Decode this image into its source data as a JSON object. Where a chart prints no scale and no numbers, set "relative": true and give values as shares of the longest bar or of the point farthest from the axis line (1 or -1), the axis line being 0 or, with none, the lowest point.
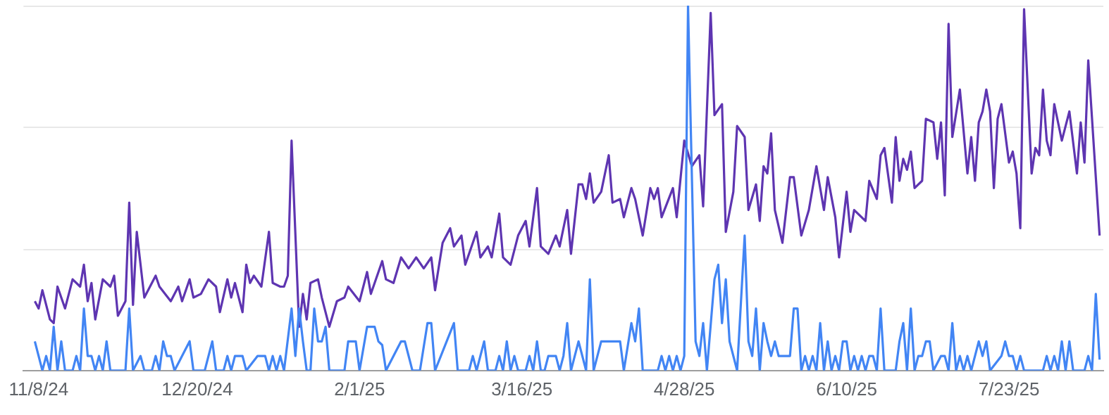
{
  "chart_data": {
    "type": "line",
    "relative": true,
    "legend": false,
    "ref_lines": [
      {
        "axis": "y",
        "value": 0.333,
        "color": "#e8e8e8"
      },
      {
        "axis": "y",
        "value": 0.667,
        "color": "#e8e8e8"
      },
      {
        "axis": "y",
        "value": 1,
        "color": "#e8e8e8"
      }
    ],
    "xlim": [
      "2024-11-04",
      "2025-08-17"
    ],
    "xticks": [
      {
        "value": "2024-11-08",
        "label": "11/8/24"
      },
      {
        "value": "2024-12-20",
        "label": "12/20/24"
      },
      {
        "value": "2025-02-01",
        "label": "2/1/25"
      },
      {
        "value": "2025-03-16",
        "label": "3/16/25"
      },
      {
        "value": "2025-04-28",
        "label": "4/28/25"
      },
      {
        "value": "2025-06-10",
        "label": "6/10/25"
      },
      {
        "value": "2025-07-23",
        "label": "7/23/25"
      }
    ],
    "series": [
      {
        "color": "#5e35b1",
        "x": [
          "2024-11-07",
          "2024-11-08",
          "2024-11-09",
          "2024-11-11",
          "2024-11-12",
          "2024-11-13",
          "2024-11-15",
          "2024-11-17",
          "2024-11-19",
          "2024-11-20",
          "2024-11-21",
          "2024-11-22",
          "2024-11-23",
          "2024-11-25",
          "2024-11-27",
          "2024-11-28",
          "2024-11-29",
          "2024-12-01",
          "2024-12-02",
          "2024-12-03",
          "2024-12-04",
          "2024-12-06",
          "2024-12-09",
          "2024-12-10",
          "2024-12-13",
          "2024-12-15",
          "2024-12-16",
          "2024-12-18",
          "2024-12-19",
          "2024-12-21",
          "2024-12-23",
          "2024-12-25",
          "2024-12-26",
          "2024-12-28",
          "2024-12-29",
          "2024-12-30",
          "2025-01-01",
          "2025-01-02",
          "2025-01-03",
          "2025-01-04",
          "2025-01-06",
          "2025-01-08",
          "2025-01-09",
          "2025-01-11",
          "2025-01-12",
          "2025-01-13",
          "2025-01-14",
          "2025-01-16",
          "2025-01-17",
          "2025-01-18",
          "2025-01-19",
          "2025-01-21",
          "2025-01-22",
          "2025-01-24",
          "2025-01-26",
          "2025-01-28",
          "2025-01-29",
          "2025-02-01",
          "2025-02-03",
          "2025-02-04",
          "2025-02-07",
          "2025-02-08",
          "2025-02-10",
          "2025-02-12",
          "2025-02-14",
          "2025-02-16",
          "2025-02-18",
          "2025-02-20",
          "2025-02-21",
          "2025-02-23",
          "2025-02-25",
          "2025-02-26",
          "2025-02-28",
          "2025-03-01",
          "2025-03-04",
          "2025-03-05",
          "2025-03-07",
          "2025-03-08",
          "2025-03-10",
          "2025-03-11",
          "2025-03-13",
          "2025-03-15",
          "2025-03-17",
          "2025-03-18",
          "2025-03-20",
          "2025-03-21",
          "2025-03-23",
          "2025-03-25",
          "2025-03-26",
          "2025-03-28",
          "2025-03-29",
          "2025-03-31",
          "2025-04-01",
          "2025-04-02",
          "2025-04-03",
          "2025-04-04",
          "2025-04-06",
          "2025-04-08",
          "2025-04-09",
          "2025-04-11",
          "2025-04-12",
          "2025-04-14",
          "2025-04-15",
          "2025-04-17",
          "2025-04-19",
          "2025-04-20",
          "2025-04-21",
          "2025-04-22",
          "2025-04-25",
          "2025-04-26",
          "2025-04-28",
          "2025-04-30",
          "2025-05-02",
          "2025-05-03",
          "2025-05-05",
          "2025-05-06",
          "2025-05-08",
          "2025-05-09",
          "2025-05-11",
          "2025-05-12",
          "2025-05-14",
          "2025-05-15",
          "2025-05-17",
          "2025-05-18",
          "2025-05-19",
          "2025-05-20",
          "2025-05-21",
          "2025-05-22",
          "2025-05-24",
          "2025-05-26",
          "2025-05-27",
          "2025-05-29",
          "2025-05-31",
          "2025-06-02",
          "2025-06-04",
          "2025-06-05",
          "2025-06-07",
          "2025-06-08",
          "2025-06-10",
          "2025-06-11",
          "2025-06-12",
          "2025-06-15",
          "2025-06-16",
          "2025-06-18",
          "2025-06-19",
          "2025-06-20",
          "2025-06-22",
          "2025-06-23",
          "2025-06-24",
          "2025-06-25",
          "2025-06-26",
          "2025-06-27",
          "2025-06-28",
          "2025-06-30",
          "2025-07-01",
          "2025-07-03",
          "2025-07-04",
          "2025-07-05",
          "2025-07-06",
          "2025-07-07",
          "2025-07-08",
          "2025-07-10",
          "2025-07-12",
          "2025-07-13",
          "2025-07-14",
          "2025-07-15",
          "2025-07-16",
          "2025-07-17",
          "2025-07-18",
          "2025-07-19",
          "2025-07-20",
          "2025-07-21",
          "2025-07-23",
          "2025-07-24",
          "2025-07-25",
          "2025-07-26",
          "2025-07-27",
          "2025-07-29",
          "2025-07-30",
          "2025-07-31",
          "2025-08-01",
          "2025-08-02",
          "2025-08-03",
          "2025-08-04",
          "2025-08-06",
          "2025-08-08",
          "2025-08-10",
          "2025-08-11",
          "2025-08-12",
          "2025-08-13",
          "2025-08-16"
        ],
        "values": [
          0.19,
          0.17,
          0.22,
          0.14,
          0.13,
          0.23,
          0.17,
          0.25,
          0.23,
          0.29,
          0.19,
          0.24,
          0.14,
          0.25,
          0.23,
          0.26,
          0.15,
          0.19,
          0.46,
          0.18,
          0.38,
          0.2,
          0.26,
          0.23,
          0.19,
          0.23,
          0.19,
          0.25,
          0.2,
          0.21,
          0.25,
          0.23,
          0.16,
          0.25,
          0.2,
          0.24,
          0.16,
          0.29,
          0.24,
          0.26,
          0.23,
          0.38,
          0.24,
          0.23,
          0.23,
          0.26,
          0.63,
          0.12,
          0.21,
          0.14,
          0.24,
          0.25,
          0.2,
          0.12,
          0.19,
          0.2,
          0.23,
          0.19,
          0.27,
          0.21,
          0.3,
          0.25,
          0.24,
          0.31,
          0.28,
          0.31,
          0.28,
          0.31,
          0.22,
          0.35,
          0.39,
          0.34,
          0.37,
          0.29,
          0.38,
          0.31,
          0.34,
          0.31,
          0.43,
          0.31,
          0.29,
          0.37,
          0.41,
          0.34,
          0.5,
          0.34,
          0.32,
          0.37,
          0.34,
          0.44,
          0.32,
          0.51,
          0.51,
          0.47,
          0.54,
          0.46,
          0.49,
          0.59,
          0.46,
          0.47,
          0.42,
          0.5,
          0.47,
          0.37,
          0.5,
          0.47,
          0.5,
          0.42,
          0.5,
          0.42,
          0.63,
          0.56,
          0.59,
          0.45,
          0.98,
          0.7,
          0.73,
          0.38,
          0.49,
          0.67,
          0.64,
          0.44,
          0.51,
          0.41,
          0.56,
          0.54,
          0.65,
          0.44,
          0.35,
          0.53,
          0.53,
          0.37,
          0.44,
          0.56,
          0.44,
          0.53,
          0.42,
          0.31,
          0.49,
          0.38,
          0.44,
          0.41,
          0.52,
          0.47,
          0.59,
          0.61,
          0.46,
          0.64,
          0.52,
          0.58,
          0.55,
          0.6,
          0.5,
          0.52,
          0.69,
          0.68,
          0.58,
          0.68,
          0.48,
          0.95,
          0.64,
          0.77,
          0.54,
          0.64,
          0.52,
          0.68,
          0.71,
          0.77,
          0.71,
          0.5,
          0.69,
          0.73,
          0.57,
          0.6,
          0.54,
          0.39,
          0.99,
          0.54,
          0.61,
          0.59,
          0.77,
          0.63,
          0.59,
          0.73,
          0.63,
          0.71,
          0.54,
          0.68,
          0.57,
          0.85,
          0.37
        ]
      },
      {
        "color": "#4285f4",
        "x": [
          "2024-11-07",
          "2024-11-09",
          "2024-11-10",
          "2024-11-11",
          "2024-11-12",
          "2024-11-13",
          "2024-11-14",
          "2024-11-15",
          "2024-11-17",
          "2024-11-18",
          "2024-11-19",
          "2024-11-20",
          "2024-11-21",
          "2024-11-22",
          "2024-11-23",
          "2024-11-24",
          "2024-11-25",
          "2024-11-26",
          "2024-11-27",
          "2024-12-01",
          "2024-12-02",
          "2024-12-03",
          "2024-12-05",
          "2024-12-06",
          "2024-12-08",
          "2024-12-09",
          "2024-12-10",
          "2024-12-11",
          "2024-12-12",
          "2024-12-13",
          "2024-12-14",
          "2024-12-16",
          "2024-12-18",
          "2024-12-19",
          "2024-12-22",
          "2024-12-24",
          "2024-12-25",
          "2024-12-27",
          "2024-12-28",
          "2024-12-29",
          "2024-12-30",
          "2025-01-01",
          "2025-01-02",
          "2025-01-05",
          "2025-01-07",
          "2025-01-08",
          "2025-01-09",
          "2025-01-10",
          "2025-01-11",
          "2025-01-12",
          "2025-01-14",
          "2025-01-15",
          "2025-01-16",
          "2025-01-17",
          "2025-01-18",
          "2025-01-19",
          "2025-01-20",
          "2025-01-21",
          "2025-01-22",
          "2025-01-23",
          "2025-01-24",
          "2025-01-28",
          "2025-01-29",
          "2025-01-31",
          "2025-02-01",
          "2025-02-03",
          "2025-02-05",
          "2025-02-06",
          "2025-02-07",
          "2025-02-08",
          "2025-02-10",
          "2025-02-12",
          "2025-02-13",
          "2025-02-15",
          "2025-02-17",
          "2025-02-19",
          "2025-02-20",
          "2025-02-21",
          "2025-02-26",
          "2025-02-27",
          "2025-03-02",
          "2025-03-03",
          "2025-03-04",
          "2025-03-06",
          "2025-03-07",
          "2025-03-09",
          "2025-03-10",
          "2025-03-11",
          "2025-03-12",
          "2025-03-13",
          "2025-03-14",
          "2025-03-15",
          "2025-03-17",
          "2025-03-18",
          "2025-03-19",
          "2025-03-20",
          "2025-03-21",
          "2025-03-22",
          "2025-03-23",
          "2025-03-25",
          "2025-03-26",
          "2025-03-27",
          "2025-03-28",
          "2025-03-29",
          "2025-03-31",
          "2025-04-02",
          "2025-04-03",
          "2025-04-04",
          "2025-04-06",
          "2025-04-11",
          "2025-04-12",
          "2025-04-14",
          "2025-04-15",
          "2025-04-16",
          "2025-04-17",
          "2025-04-21",
          "2025-04-22",
          "2025-04-23",
          "2025-04-24",
          "2025-04-25",
          "2025-04-26",
          "2025-04-27",
          "2025-04-28",
          "2025-04-29",
          "2025-05-01",
          "2025-05-02",
          "2025-05-03",
          "2025-05-04",
          "2025-05-06",
          "2025-05-07",
          "2025-05-08",
          "2025-05-09",
          "2025-05-10",
          "2025-05-12",
          "2025-05-14",
          "2025-05-15",
          "2025-05-16",
          "2025-05-17",
          "2025-05-18",
          "2025-05-19",
          "2025-05-20",
          "2025-05-21",
          "2025-05-22",
          "2025-05-23",
          "2025-05-26",
          "2025-05-27",
          "2025-05-28",
          "2025-05-29",
          "2025-05-30",
          "2025-05-31",
          "2025-06-01",
          "2025-06-02",
          "2025-06-03",
          "2025-06-04",
          "2025-06-05",
          "2025-06-06",
          "2025-06-07",
          "2025-06-08",
          "2025-06-09",
          "2025-06-10",
          "2025-06-11",
          "2025-06-12",
          "2025-06-13",
          "2025-06-14",
          "2025-06-15",
          "2025-06-16",
          "2025-06-17",
          "2025-06-18",
          "2025-06-19",
          "2025-06-20",
          "2025-06-23",
          "2025-06-24",
          "2025-06-25",
          "2025-06-26",
          "2025-06-27",
          "2025-06-28",
          "2025-06-29",
          "2025-06-30",
          "2025-07-01",
          "2025-07-02",
          "2025-07-03",
          "2025-07-05",
          "2025-07-06",
          "2025-07-07",
          "2025-07-08",
          "2025-07-09",
          "2025-07-10",
          "2025-07-11",
          "2025-07-12",
          "2025-07-13",
          "2025-07-14",
          "2025-07-15",
          "2025-07-16",
          "2025-07-17",
          "2025-07-18",
          "2025-07-21",
          "2025-07-22",
          "2025-07-23",
          "2025-07-24",
          "2025-07-25",
          "2025-07-26",
          "2025-07-27",
          "2025-08-01",
          "2025-08-02",
          "2025-08-03",
          "2025-08-04",
          "2025-08-05",
          "2025-08-06",
          "2025-08-07",
          "2025-08-08",
          "2025-08-09",
          "2025-08-12",
          "2025-08-13",
          "2025-08-14",
          "2025-08-15",
          "2025-08-16"
        ],
        "values": [
          0.08,
          0,
          0.04,
          0,
          0.12,
          0,
          0.08,
          0,
          0,
          0.04,
          0,
          0.17,
          0.04,
          0.04,
          0,
          0.04,
          0,
          0.08,
          0,
          0,
          0.17,
          0,
          0.04,
          0,
          0,
          0.04,
          0,
          0.08,
          0.04,
          0.04,
          0,
          0.04,
          0.08,
          0,
          0,
          0.08,
          0,
          0,
          0.04,
          0,
          0.04,
          0.04,
          0,
          0.04,
          0.04,
          0,
          0.04,
          0,
          0.04,
          0,
          0.17,
          0.04,
          0.17,
          0.08,
          0,
          0,
          0.17,
          0.08,
          0.08,
          0.12,
          0,
          0,
          0.08,
          0.08,
          0,
          0.12,
          0.12,
          0.08,
          0.07,
          0,
          0.04,
          0.08,
          0.08,
          0,
          0,
          0.13,
          0.13,
          0,
          0.13,
          0,
          0,
          0.04,
          0,
          0.08,
          0,
          0,
          0.04,
          0,
          0.08,
          0,
          0.04,
          0,
          0,
          0.04,
          0,
          0.08,
          0,
          0,
          0.04,
          0.04,
          0,
          0.04,
          0.13,
          0,
          0.08,
          0,
          0.25,
          0,
          0.08,
          0.08,
          0,
          0.13,
          0.08,
          0.17,
          0,
          0,
          0.04,
          0,
          0.04,
          0,
          0.04,
          0,
          0.04,
          1,
          0.08,
          0.04,
          0.13,
          0,
          0.25,
          0.29,
          0.13,
          0.25,
          0.08,
          0,
          0.37,
          0.08,
          0.04,
          0.17,
          0,
          0.13,
          0.08,
          0.04,
          0.08,
          0.04,
          0.04,
          0.17,
          0.17,
          0,
          0.04,
          0,
          0.04,
          0,
          0.13,
          0,
          0.08,
          0,
          0.04,
          0,
          0.08,
          0.08,
          0,
          0.04,
          0,
          0.04,
          0,
          0.04,
          0.04,
          0,
          0.17,
          0,
          0,
          0.08,
          0.13,
          0,
          0.17,
          0,
          0.04,
          0.04,
          0.08,
          0.08,
          0,
          0.04,
          0.04,
          0,
          0.13,
          0,
          0.04,
          0,
          0.04,
          0,
          0.04,
          0.08,
          0.04,
          0.08,
          0,
          0.04,
          0.08,
          0.04,
          0.04,
          0,
          0.04,
          0,
          0,
          0.04,
          0,
          0.04,
          0,
          0.08,
          0,
          0.08,
          0,
          0,
          0.04,
          0,
          0.21,
          0.03
        ]
      }
    ]
  }
}
